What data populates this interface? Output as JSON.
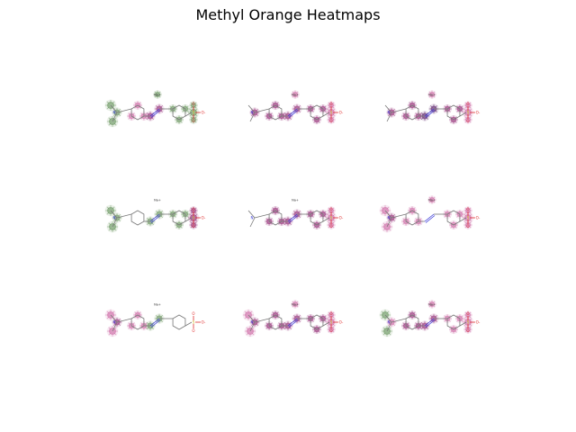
{
  "figure": {
    "title": "Methyl Orange Heatmaps"
  },
  "colors": {
    "green": "#5a8a4e",
    "purple": "#8a1a6a",
    "dark_purple": "#4a0a5a",
    "pink": "#c85a9a",
    "bond": "#777777",
    "nitrogen": "#3a3ad8",
    "sulfur": "#c9b21a",
    "oxygen": "#e03030"
  },
  "molecule": {
    "counter_ion_label": "Na+",
    "sulfur_label": "S",
    "oxygen_label": "O",
    "oxygen_minus_label": "O-",
    "nitrogen_label": "N"
  },
  "panels": [
    {
      "row": 1,
      "col": 1,
      "heat": {
        "me1": "green",
        "me2": "green",
        "n": "green",
        "ringA": "pink",
        "azo": "purple",
        "ringB": "green",
        "s": "green",
        "o": "green",
        "na": "green"
      }
    },
    {
      "row": 1,
      "col": 2,
      "heat": {
        "me1": "none",
        "me2": "none",
        "n": "purple",
        "ringA": "purple",
        "azo": "purple",
        "ringB": "purple",
        "s": "pink",
        "o": "pink",
        "na": "pink"
      }
    },
    {
      "row": 1,
      "col": 3,
      "heat": {
        "me1": "none",
        "me2": "none",
        "n": "purple",
        "ringA": "purple",
        "azo": "dark_purple",
        "ringB": "purple",
        "s": "pink",
        "o": "pink",
        "na": "pink"
      }
    },
    {
      "row": 2,
      "col": 1,
      "heat": {
        "me1": "green",
        "me2": "green",
        "n": "green",
        "ringA": "none",
        "azo": "green",
        "ringB": "green",
        "s": "purple",
        "o": "purple",
        "na": "none"
      }
    },
    {
      "row": 2,
      "col": 2,
      "heat": {
        "me1": "none",
        "me2": "none",
        "n": "none",
        "ringA": "purple",
        "azo": "purple",
        "ringB": "purple",
        "s": "pink",
        "o": "pink",
        "na": "none"
      }
    },
    {
      "row": 2,
      "col": 3,
      "heat": {
        "me1": "pink",
        "me2": "pink",
        "n": "purple",
        "ringA": "pink",
        "azo": "none",
        "ringB": "pink",
        "s": "pink",
        "o": "pink",
        "na": "pink"
      }
    },
    {
      "row": 3,
      "col": 1,
      "heat": {
        "me1": "pink",
        "me2": "pink",
        "n": "purple",
        "ringA": "pink",
        "azo": "green",
        "ringB": "none",
        "s": "none",
        "o": "none",
        "na": "none"
      }
    },
    {
      "row": 3,
      "col": 2,
      "heat": {
        "me1": "pink",
        "me2": "pink",
        "n": "purple",
        "ringA": "purple",
        "azo": "purple",
        "ringB": "purple",
        "s": "pink",
        "o": "pink",
        "na": "pink"
      }
    },
    {
      "row": 3,
      "col": 3,
      "heat": {
        "me1": "green",
        "me2": "green",
        "n": "pink",
        "ringA": "purple",
        "azo": "purple",
        "ringB": "pink",
        "s": "pink",
        "o": "pink",
        "na": "pink"
      }
    }
  ]
}
